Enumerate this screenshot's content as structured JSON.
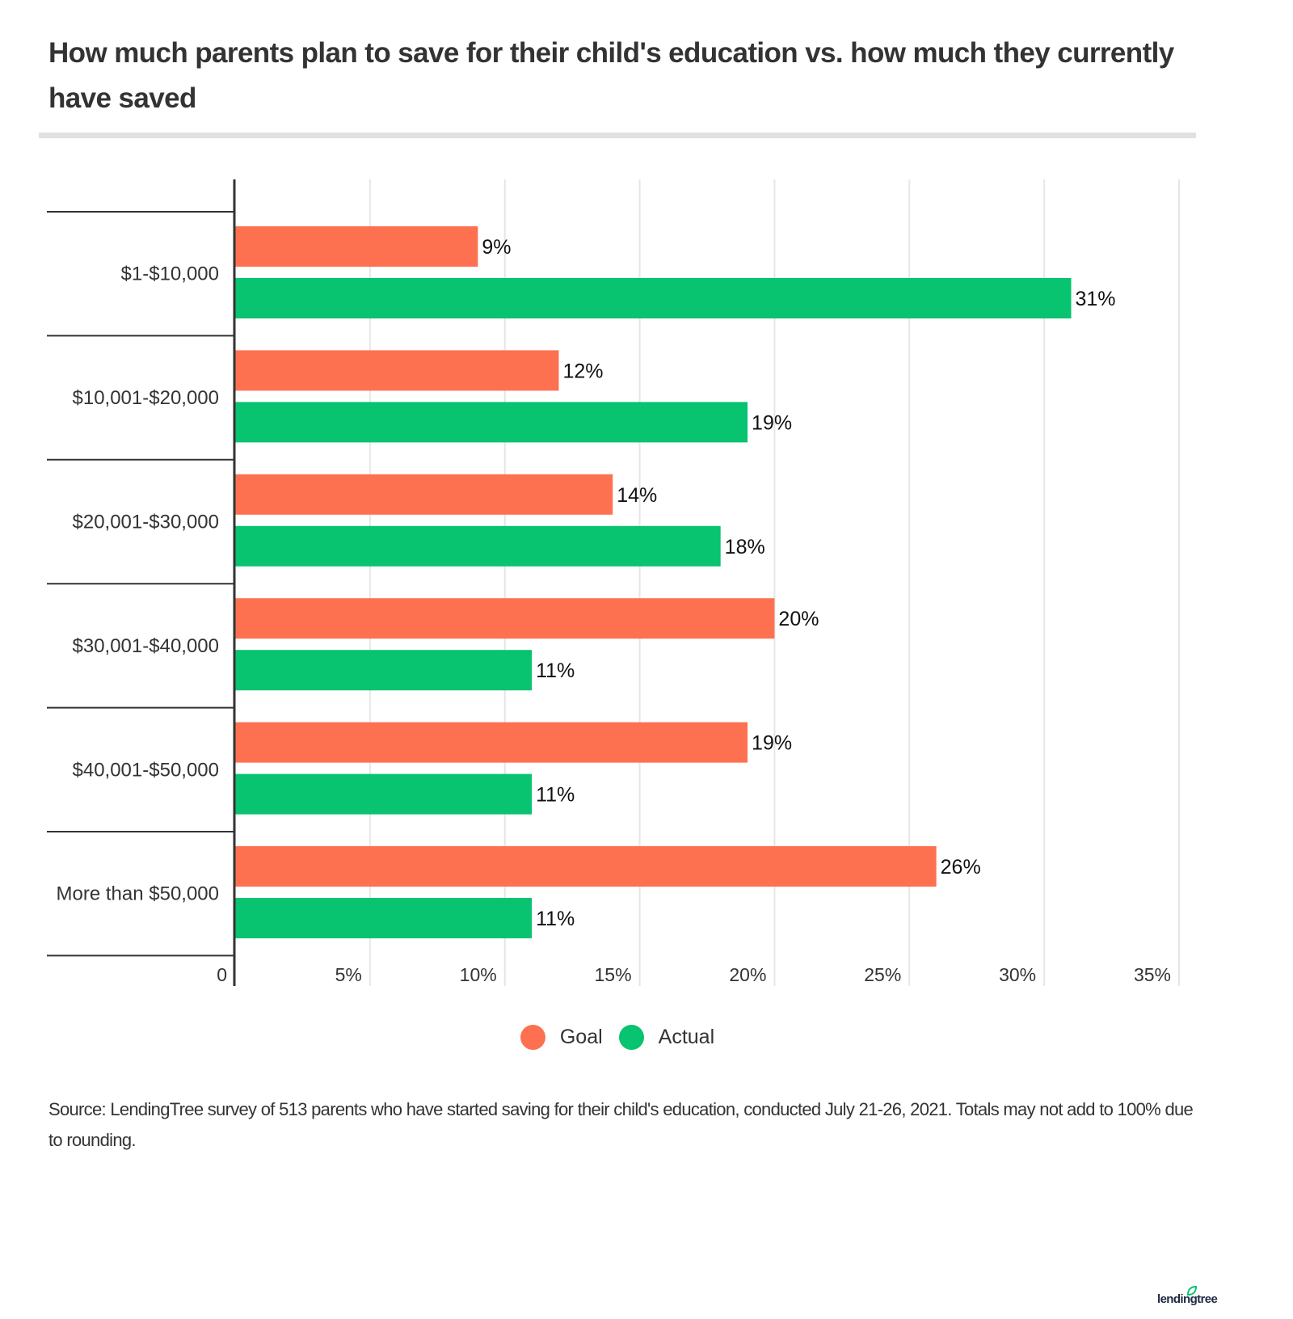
{
  "title": "How much parents plan to save for their child's education vs. how much they currently have saved",
  "source": "Source: LendingTree survey of 513 parents who have started saving for their child's education, conducted July 21-26, 2021. Totals may not add to 100% due to rounding.",
  "logo": {
    "text": "lendingtree",
    "icon": "leaf-icon"
  },
  "colors": {
    "goal": "#fd7150",
    "actual": "#08c370",
    "axis": "#333333",
    "grid": "#e6e6e6"
  },
  "legend": [
    {
      "label": "Goal",
      "color": "#fd7150"
    },
    {
      "label": "Actual",
      "color": "#08c370"
    }
  ],
  "chart_data": {
    "type": "bar",
    "orientation": "horizontal",
    "title": "How much parents plan to save for their child's education vs. how much they currently have saved",
    "categories": [
      "$1-$10,000",
      "$10,001-$20,000",
      "$20,001-$30,000",
      "$30,001-$40,000",
      "$40,001-$50,000",
      "More than $50,000"
    ],
    "series": [
      {
        "name": "Goal",
        "color": "#fd7150",
        "values": [
          9,
          12,
          14,
          20,
          19,
          26
        ],
        "labels": [
          "9%",
          "12%",
          "14%",
          "20%",
          "19%",
          "26%"
        ]
      },
      {
        "name": "Actual",
        "color": "#08c370",
        "values": [
          31,
          19,
          18,
          11,
          11,
          11
        ],
        "labels": [
          "31%",
          "19%",
          "18%",
          "11%",
          "11%",
          "11%"
        ]
      }
    ],
    "xlim": [
      0,
      35
    ],
    "xticks": [
      0,
      5,
      10,
      15,
      20,
      25,
      30,
      35
    ],
    "xtick_labels": [
      "0",
      "5%",
      "10%",
      "15%",
      "20%",
      "25%",
      "30%",
      "35%"
    ],
    "xlabel": "",
    "ylabel": "",
    "grid": true,
    "legend_position": "bottom-center"
  }
}
